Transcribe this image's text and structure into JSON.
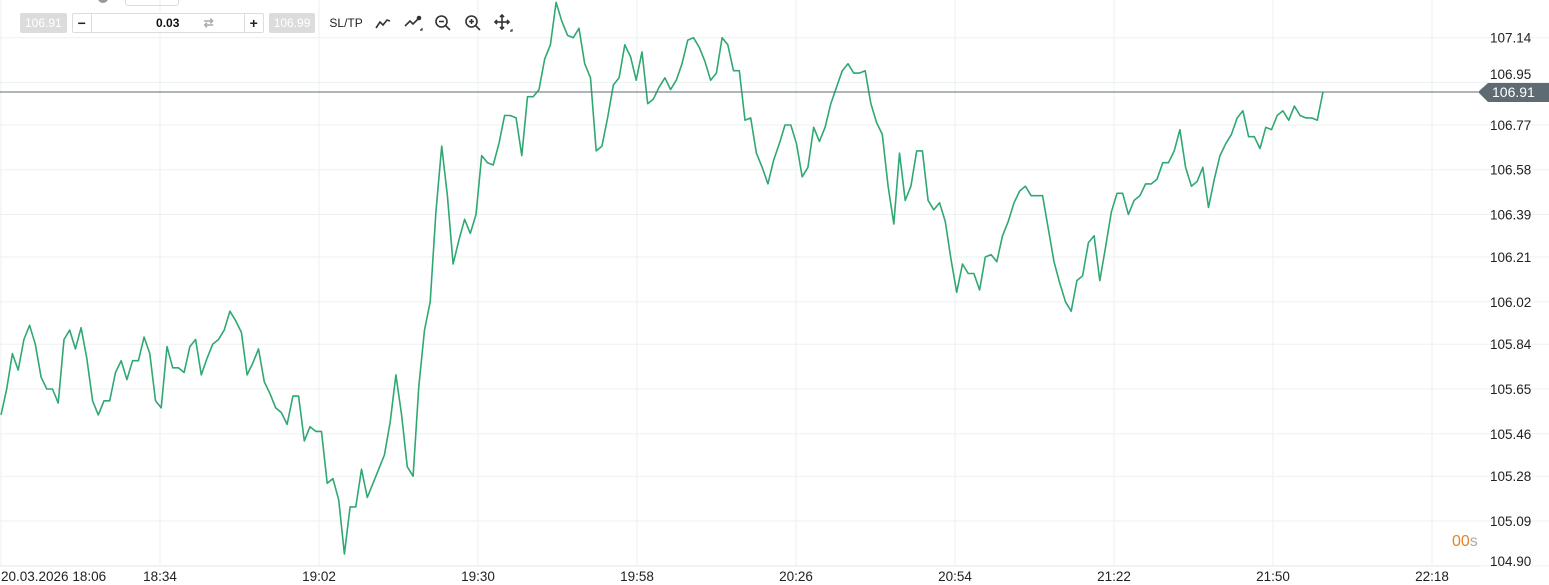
{
  "toolbar": {
    "bid_price": "106.91",
    "ask_price": "106.99",
    "lot_value": "0.03",
    "minus_label": "−",
    "plus_label": "+",
    "swap_icon": "⇄",
    "sltp_label": "SL/TP",
    "tools": [
      "line-chart-icon",
      "chart-type-icon",
      "zoom-out-icon",
      "zoom-in-icon",
      "move-crosshair-icon"
    ]
  },
  "timer": {
    "value": "00",
    "unit": "s"
  },
  "current_price_label": "106.91",
  "colors": {
    "line": "#2fa872",
    "price_tag": "#5f6b73",
    "timer": "#e8822a",
    "grid": "#eef0f2"
  },
  "chart_data": {
    "type": "line",
    "x_start": "18:06",
    "x_step_minutes": 1,
    "x_tick_labels": [
      "20.03.2026 18:06",
      "18:34",
      "19:02",
      "19:30",
      "19:58",
      "20:26",
      "20:54",
      "21:22",
      "21:50",
      "22:18"
    ],
    "x_tick_minutes": [
      0,
      28,
      56,
      84,
      112,
      140,
      168,
      196,
      224,
      252
    ],
    "xlim_minutes": [
      0,
      260
    ],
    "y_tick_labels": [
      "107.14",
      "106.95",
      "106.77",
      "106.58",
      "106.39",
      "106.21",
      "106.02",
      "105.84",
      "105.65",
      "105.46",
      "105.28",
      "105.09",
      "104.90"
    ],
    "ylim": [
      104.895,
      107.3
    ],
    "grid": true,
    "current_price": 106.91,
    "values": [
      105.54,
      105.65,
      105.8,
      105.73,
      105.86,
      105.92,
      105.84,
      105.7,
      105.65,
      105.65,
      105.59,
      105.86,
      105.9,
      105.82,
      105.91,
      105.78,
      105.6,
      105.54,
      105.6,
      105.6,
      105.72,
      105.77,
      105.69,
      105.77,
      105.77,
      105.87,
      105.8,
      105.6,
      105.57,
      105.83,
      105.74,
      105.74,
      105.72,
      105.83,
      105.86,
      105.71,
      105.78,
      105.84,
      105.86,
      105.9,
      105.98,
      105.94,
      105.89,
      105.71,
      105.76,
      105.82,
      105.68,
      105.63,
      105.57,
      105.55,
      105.5,
      105.62,
      105.62,
      105.43,
      105.49,
      105.47,
      105.47,
      105.25,
      105.27,
      105.18,
      104.95,
      105.15,
      105.15,
      105.31,
      105.19,
      105.25,
      105.31,
      105.37,
      105.51,
      105.71,
      105.54,
      105.32,
      105.28,
      105.66,
      105.9,
      106.02,
      106.4,
      106.68,
      106.47,
      106.18,
      106.28,
      106.37,
      106.31,
      106.39,
      106.64,
      106.61,
      106.6,
      106.69,
      106.81,
      106.81,
      106.8,
      106.64,
      106.89,
      106.89,
      106.92,
      107.05,
      107.11,
      107.29,
      107.21,
      107.15,
      107.14,
      107.18,
      107.03,
      106.97,
      106.66,
      106.68,
      106.8,
      106.94,
      106.97,
      107.11,
      107.06,
      106.96,
      107.08,
      106.86,
      106.88,
      106.93,
      106.97,
      106.92,
      106.96,
      107.03,
      107.13,
      107.14,
      107.1,
      107.04,
      106.96,
      106.99,
      107.14,
      107.11,
      107.0,
      107.0,
      106.79,
      106.8,
      106.65,
      106.59,
      106.52,
      106.62,
      106.69,
      106.77,
      106.77,
      106.69,
      106.55,
      106.59,
      106.76,
      106.7,
      106.76,
      106.86,
      106.93,
      107.0,
      107.03,
      106.99,
      106.99,
      107.0,
      106.86,
      106.78,
      106.73,
      106.51,
      106.35,
      106.65,
      106.45,
      106.51,
      106.66,
      106.66,
      106.45,
      106.41,
      106.44,
      106.36,
      106.2,
      106.06,
      106.18,
      106.14,
      106.14,
      106.07,
      106.21,
      106.22,
      106.19,
      106.3,
      106.36,
      106.44,
      106.49,
      106.51,
      106.47,
      106.47,
      106.47,
      106.33,
      106.19,
      106.1,
      106.02,
      105.98,
      106.11,
      106.13,
      106.27,
      106.3,
      106.11,
      106.25,
      106.4,
      106.48,
      106.48,
      106.39,
      106.45,
      106.47,
      106.52,
      106.52,
      106.54,
      106.61,
      106.61,
      106.66,
      106.75,
      106.59,
      106.51,
      106.53,
      106.59,
      106.42,
      106.54,
      106.64,
      106.69,
      106.73,
      106.8,
      106.83,
      106.72,
      106.72,
      106.67,
      106.76,
      106.75,
      106.81,
      106.83,
      106.79,
      106.85,
      106.81,
      106.8,
      106.8,
      106.79,
      106.91
    ]
  }
}
